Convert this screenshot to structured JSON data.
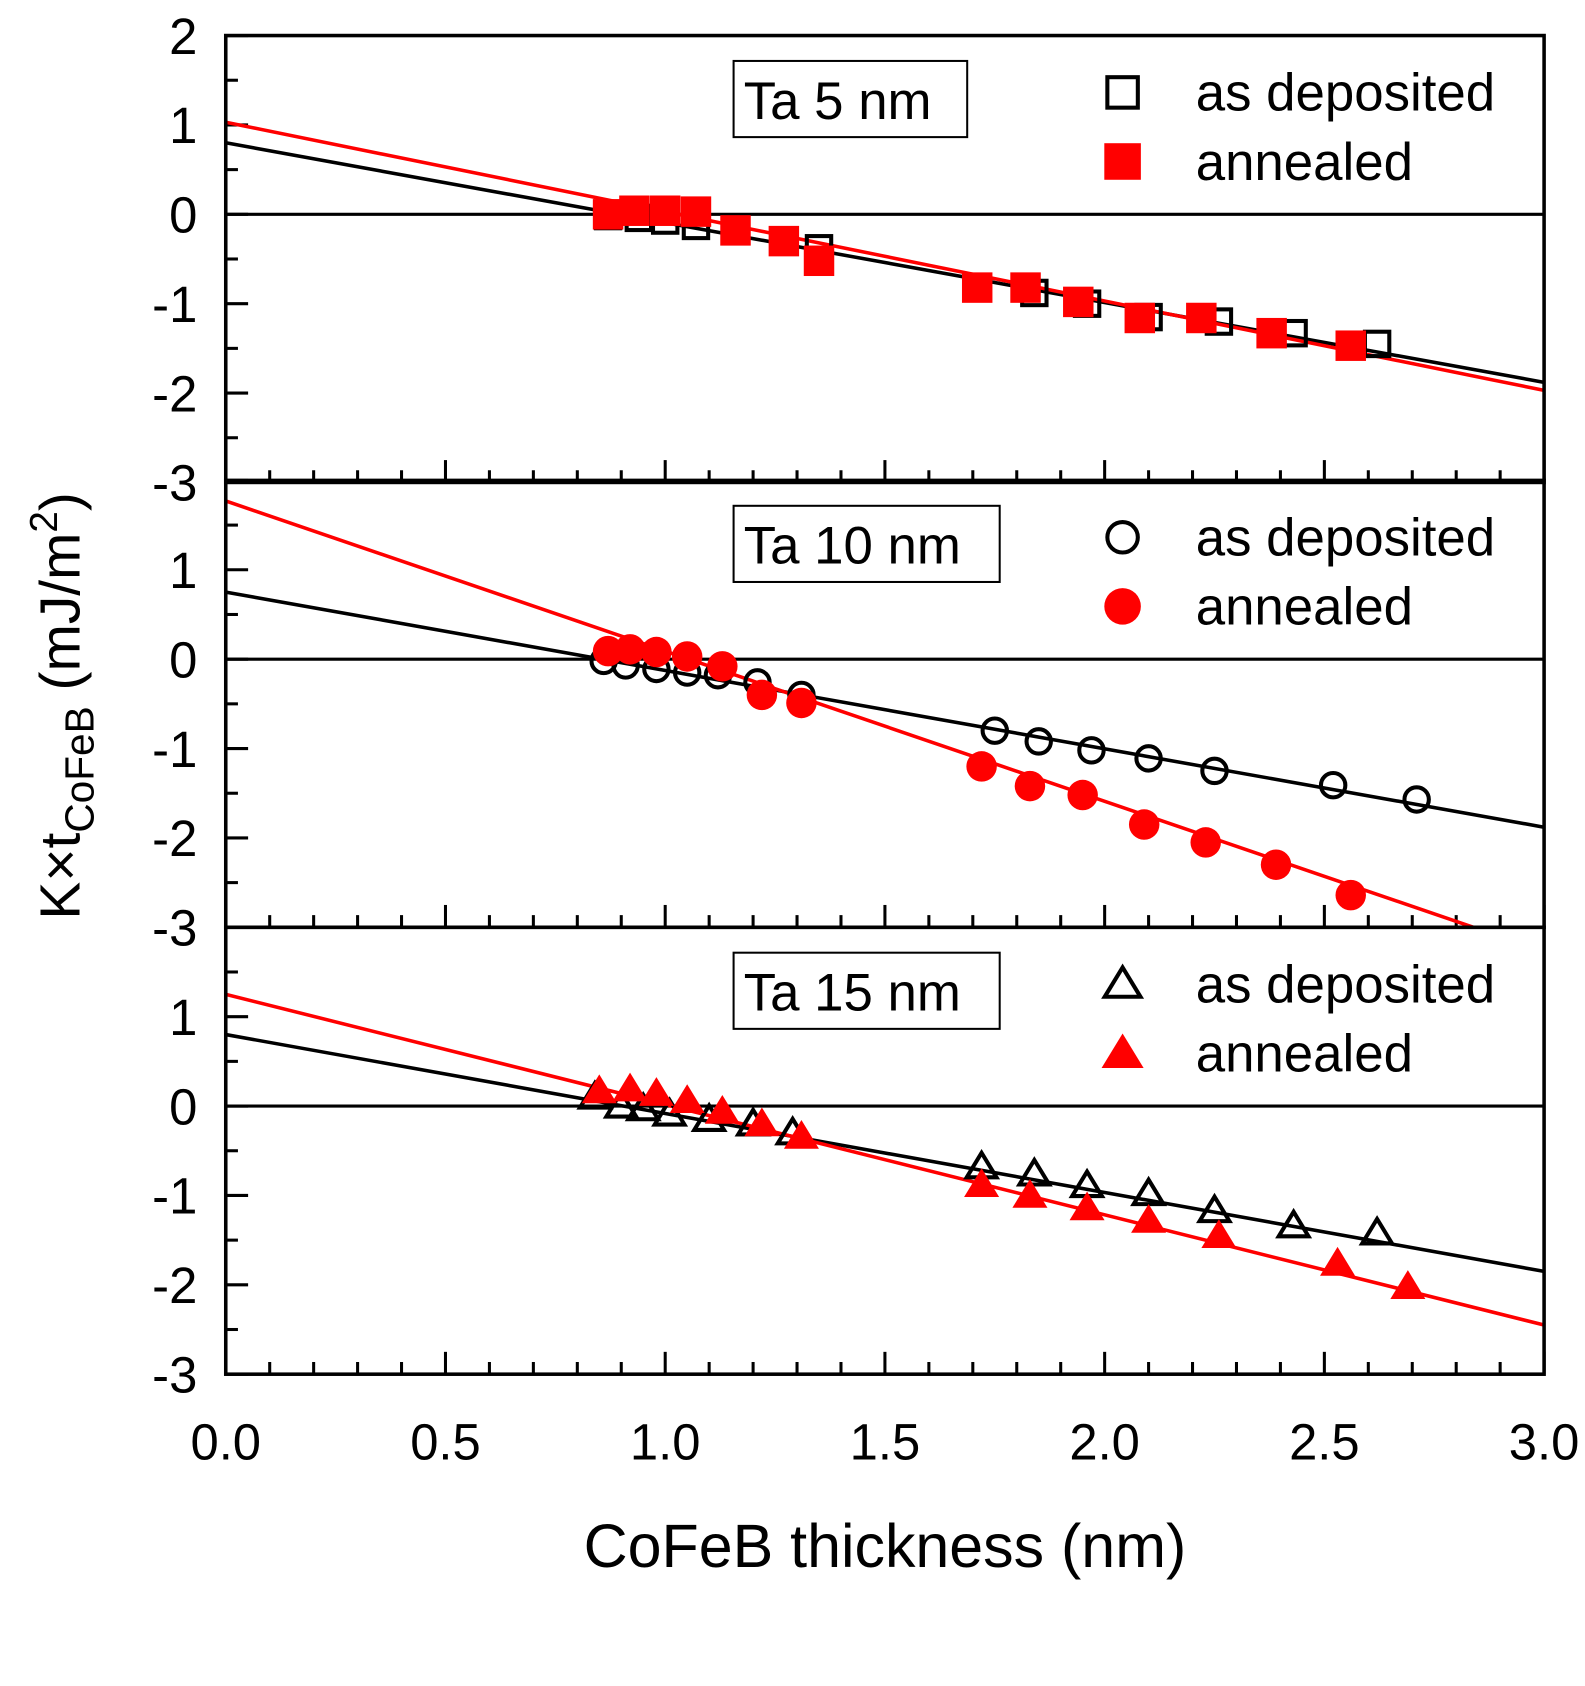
{
  "chart_data": {
    "type": "scatter",
    "xlabel": "CoFeB thickness (nm)",
    "ylabel": {
      "main": "K×t",
      "sub": "CoFeB",
      "unit_pre": " (mJ/m",
      "sup": "2",
      "unit_post": ")"
    },
    "xlim": [
      0,
      3.0
    ],
    "xticks": [
      "0.0",
      "0.5",
      "1.0",
      "1.5",
      "2.0",
      "2.5",
      "3.0"
    ],
    "colors": {
      "as_deposited": "#000000",
      "annealed": "#ff0000"
    },
    "panels": [
      {
        "title": "Ta 5 nm",
        "ylim": [
          -3,
          2
        ],
        "yticks": [
          "2",
          "1",
          "0",
          "-1",
          "-2",
          "-3"
        ],
        "marker": "square",
        "series": [
          {
            "name": "as deposited",
            "filled": false,
            "x": [
              0.87,
              0.94,
              1.0,
              1.07,
              1.35,
              1.84,
              1.96,
              2.1,
              2.26,
              2.43,
              2.62
            ],
            "y": [
              -0.02,
              -0.04,
              -0.07,
              -0.13,
              -0.38,
              -0.88,
              -1.0,
              -1.15,
              -1.2,
              -1.33,
              -1.45
            ],
            "fit": [
              0.8,
              -1.88
            ]
          },
          {
            "name": "annealed",
            "filled": true,
            "x": [
              0.87,
              0.93,
              1.0,
              1.07,
              1.16,
              1.27,
              1.35,
              1.71,
              1.82,
              1.94,
              2.08,
              2.22,
              2.38,
              2.56
            ],
            "y": [
              0.0,
              0.04,
              0.04,
              0.03,
              -0.18,
              -0.3,
              -0.52,
              -0.82,
              -0.82,
              -0.98,
              -1.16,
              -1.16,
              -1.33,
              -1.47
            ],
            "fit": [
              1.03,
              -1.97
            ]
          }
        ]
      },
      {
        "title": "Ta 10 nm",
        "ylim": [
          -3,
          2
        ],
        "yticks": [
          "1",
          "0",
          "-1",
          "-2",
          "-3"
        ],
        "marker": "circle",
        "series": [
          {
            "name": "as deposited",
            "filled": false,
            "x": [
              0.86,
              0.91,
              0.98,
              1.05,
              1.12,
              1.21,
              1.31,
              1.75,
              1.85,
              1.97,
              2.1,
              2.25,
              2.52,
              2.71
            ],
            "y": [
              -0.02,
              -0.07,
              -0.11,
              -0.15,
              -0.18,
              -0.26,
              -0.4,
              -0.8,
              -0.92,
              -1.02,
              -1.11,
              -1.25,
              -1.41,
              -1.57
            ],
            "fit": [
              0.75,
              -1.88
            ]
          },
          {
            "name": "annealed",
            "filled": true,
            "x": [
              0.87,
              0.92,
              0.98,
              1.05,
              1.13,
              1.22,
              1.31,
              1.72,
              1.83,
              1.95,
              2.09,
              2.23,
              2.39,
              2.56
            ],
            "y": [
              0.09,
              0.11,
              0.08,
              0.03,
              -0.08,
              -0.4,
              -0.49,
              -1.2,
              -1.42,
              -1.52,
              -1.85,
              -2.05,
              -2.3,
              -2.64
            ],
            "fit": [
              1.77,
              -3.27
            ]
          }
        ]
      },
      {
        "title": "Ta 15 nm",
        "ylim": [
          -3,
          2
        ],
        "yticks": [
          "1",
          "0",
          "-1",
          "-2",
          "-3"
        ],
        "marker": "triangle",
        "series": [
          {
            "name": "as deposited",
            "filled": false,
            "x": [
              0.84,
              0.9,
              0.95,
              1.01,
              1.1,
              1.2,
              1.29,
              1.72,
              1.84,
              1.96,
              2.1,
              2.25,
              2.43,
              2.62
            ],
            "y": [
              0.1,
              0.0,
              -0.03,
              -0.09,
              -0.15,
              -0.2,
              -0.3,
              -0.68,
              -0.76,
              -0.89,
              -0.98,
              -1.17,
              -1.34,
              -1.42
            ],
            "fit": [
              0.8,
              -1.85
            ]
          },
          {
            "name": "annealed",
            "filled": true,
            "x": [
              0.85,
              0.92,
              0.98,
              1.05,
              1.13,
              1.22,
              1.31,
              1.72,
              1.83,
              1.96,
              2.1,
              2.26,
              2.53,
              2.69
            ],
            "y": [
              0.17,
              0.19,
              0.14,
              0.06,
              -0.06,
              -0.2,
              -0.34,
              -0.88,
              -1.0,
              -1.14,
              -1.28,
              -1.45,
              -1.76,
              -2.02
            ],
            "fit": [
              1.25,
              -2.45
            ]
          }
        ]
      }
    ]
  }
}
